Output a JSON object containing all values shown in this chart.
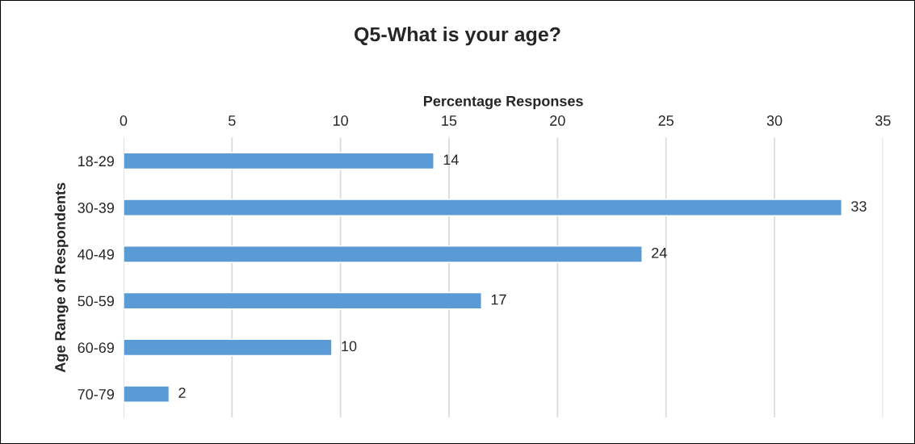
{
  "chart_data": {
    "type": "bar",
    "orientation": "horizontal",
    "title": "Q5-What is your age?",
    "xlabel": "Percentage Responses",
    "ylabel": "Age Range of Respondents",
    "categories": [
      "18-29",
      "30-39",
      "40-49",
      "50-59",
      "60-69",
      "70-79"
    ],
    "values": [
      14.3,
      33.1,
      23.9,
      16.5,
      9.6,
      2.1
    ],
    "value_labels": [
      "14",
      "33",
      "24",
      "17",
      "10",
      "2"
    ],
    "color": "#5b9bd5",
    "xlim": [
      0,
      35
    ],
    "xticks": [
      0,
      5,
      10,
      15,
      20,
      25,
      30,
      35
    ],
    "grid": "x",
    "legend": false
  }
}
